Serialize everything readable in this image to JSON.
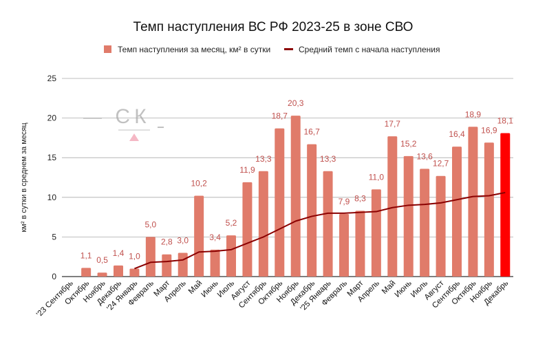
{
  "chart_data": {
    "type": "bar",
    "title": "Темп наступления ВС РФ 2023-25 в зоне СВО",
    "xlabel": "",
    "ylabel": "км² в сутки в среднем за месяц",
    "ylim": [
      0,
      25
    ],
    "yticks": [
      "0",
      "5",
      "10",
      "15",
      "20",
      "25"
    ],
    "grid": true,
    "legend_position": "top",
    "categories": [
      "'23 Сентябрь",
      "Октябрь",
      "Ноябрь",
      "Декабрь",
      "'24 Январь",
      "Февраль",
      "Март",
      "Апрель",
      "Май",
      "Июнь",
      "Июль",
      "Август",
      "Сентябрь",
      "Октябрь",
      "Ноябрь",
      "Декабрь",
      "'25 Январь",
      "Февраль",
      "Март",
      "Апрель",
      "Май",
      "Июнь",
      "Июль",
      "Август",
      "Сентябрь",
      "Октябрь",
      "Ноябрь",
      "Декабрь"
    ],
    "series": [
      {
        "name": "Темп наступления за месяц, км² в сутки",
        "type": "bar",
        "color": "#e07b6a",
        "highlight_color": "#ff0000",
        "values": [
          null,
          1.1,
          0.5,
          1.4,
          1.0,
          5.0,
          2.8,
          3.0,
          10.2,
          3.4,
          5.2,
          11.9,
          13.3,
          18.7,
          20.3,
          16.7,
          13.3,
          7.9,
          8.3,
          11.0,
          17.7,
          15.2,
          13.6,
          12.7,
          16.4,
          18.9,
          16.9,
          18.1
        ],
        "labels": [
          "",
          "1,1",
          "0,5",
          "1,4",
          "1,0",
          "5,0",
          "2,8",
          "3,0",
          "10,2",
          "3,4",
          "5,2",
          "11,9",
          "13,3",
          "18,7",
          "20,3",
          "16,7",
          "13,3",
          "7,9",
          "8,3",
          "11,0",
          "17,7",
          "15,2",
          "13,6",
          "12,7",
          "16,4",
          "18,9",
          "16,9",
          "18,1"
        ]
      },
      {
        "name": "Средний темп с начала наступления",
        "type": "line",
        "color": "#8b0000",
        "values": [
          null,
          null,
          null,
          null,
          1.0,
          1.8,
          1.9,
          2.1,
          3.1,
          3.2,
          3.4,
          4.2,
          5.0,
          6.0,
          7.0,
          7.6,
          8.0,
          8.0,
          8.1,
          8.2,
          8.7,
          9.0,
          9.1,
          9.3,
          9.7,
          10.1,
          10.2,
          10.6
        ]
      }
    ]
  },
  "watermark": "СК"
}
